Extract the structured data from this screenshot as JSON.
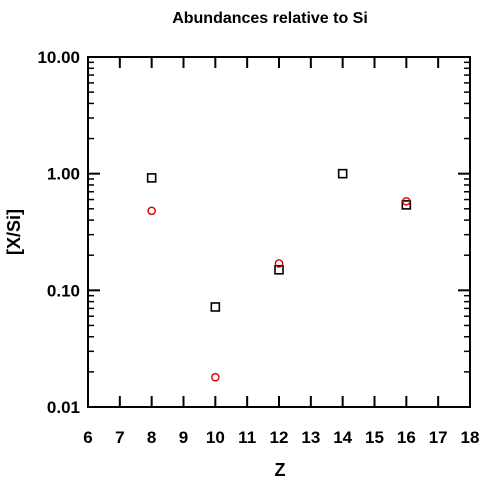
{
  "chart_data": {
    "type": "scatter",
    "title": "Abundances relative to Si",
    "xlabel": "Z",
    "ylabel": "[X/Si]",
    "xlim": [
      6,
      18
    ],
    "ylim": [
      0.01,
      10
    ],
    "yscale": "log",
    "x_ticks": [
      "6",
      "7",
      "8",
      "9",
      "10",
      "11",
      "12",
      "13",
      "14",
      "15",
      "16",
      "17",
      "18"
    ],
    "y_ticks": [
      "0.01",
      "0.10",
      "1.00",
      "10.00"
    ],
    "grid": false,
    "series": [
      {
        "marker": "square",
        "color": "#000000",
        "points": [
          {
            "x": 8,
            "y": 0.92
          },
          {
            "x": 10,
            "y": 0.072
          },
          {
            "x": 12,
            "y": 0.15
          },
          {
            "x": 14,
            "y": 1.0
          },
          {
            "x": 16,
            "y": 0.54
          }
        ]
      },
      {
        "marker": "circle",
        "color": "#d40000",
        "points": [
          {
            "x": 8,
            "y": 0.48
          },
          {
            "x": 10,
            "y": 0.018
          },
          {
            "x": 12,
            "y": 0.17
          },
          {
            "x": 16,
            "y": 0.58
          }
        ]
      }
    ]
  }
}
